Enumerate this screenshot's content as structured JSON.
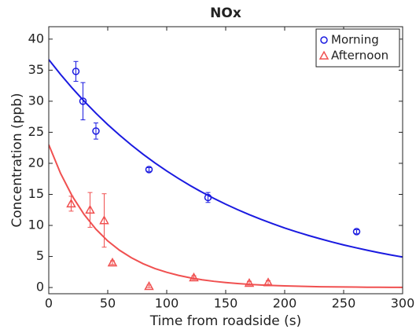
{
  "chart_data": {
    "type": "scatter",
    "title": "NOx",
    "x_label": "Time from roadside (s)",
    "y_label": "Concentration (ppb)",
    "xlim": [
      0,
      300
    ],
    "xticks": [
      0,
      50,
      100,
      150,
      200,
      250,
      300
    ],
    "ylim": [
      -1,
      42
    ],
    "yticks": [
      0,
      5,
      10,
      15,
      20,
      25,
      30,
      35,
      40
    ],
    "grid": false,
    "legend": "northeast",
    "series": [
      {
        "name": "Morning",
        "color": "#1a1ae0",
        "marker": "circle",
        "x": [
          23,
          29,
          40,
          85,
          135,
          261
        ],
        "values": [
          34.8,
          30,
          25.2,
          19,
          14.5,
          9
        ],
        "errors": [
          1.6,
          3,
          1.3,
          0.3,
          0.8,
          0.3
        ]
      },
      {
        "name": "Afternoon",
        "color": "#f05050",
        "marker": "triangle",
        "x": [
          19,
          35,
          47,
          54,
          85,
          123,
          170,
          186
        ],
        "values": [
          13.5,
          12.5,
          10.8,
          4,
          0.2,
          1.6,
          0.7,
          0.8
        ],
        "errors": [
          1.2,
          2.8,
          4.3,
          0.3,
          0.2,
          0.3,
          0.3,
          0.3
        ]
      }
    ],
    "fits": [
      {
        "color": "#1a1ae0",
        "x": [
          0,
          10,
          20,
          30,
          40,
          50,
          60,
          70,
          80,
          90,
          100,
          110,
          120,
          130,
          140,
          150,
          160,
          170,
          180,
          190,
          200,
          210,
          220,
          230,
          240,
          250,
          260,
          270,
          280,
          290,
          300
        ],
        "values": [
          36.7,
          34.32,
          32.09,
          30.01,
          28.06,
          26.24,
          24.54,
          22.95,
          21.46,
          20.07,
          18.77,
          17.55,
          16.41,
          15.34,
          14.35,
          13.42,
          12.55,
          11.73,
          10.97,
          10.26,
          9.59,
          8.97,
          8.39,
          7.85,
          7.34,
          6.86,
          6.42,
          6.0,
          5.61,
          5.25,
          4.91
        ]
      },
      {
        "color": "#f05050",
        "x": [
          0,
          10,
          20,
          30,
          40,
          50,
          60,
          70,
          80,
          90,
          100,
          110,
          120,
          130,
          140,
          150,
          160,
          170,
          180,
          190,
          200,
          210,
          220,
          230,
          240,
          250,
          260,
          270,
          280,
          290,
          300
        ],
        "values": [
          23,
          18.38,
          14.69,
          11.75,
          9.39,
          7.5,
          6.0,
          4.8,
          3.83,
          3.06,
          2.45,
          1.96,
          1.56,
          1.25,
          1.0,
          0.8,
          0.64,
          0.51,
          0.41,
          0.33,
          0.26,
          0.21,
          0.17,
          0.13,
          0.11,
          0.09,
          0.07,
          0.05,
          0.04,
          0.03,
          0.03
        ]
      }
    ]
  }
}
